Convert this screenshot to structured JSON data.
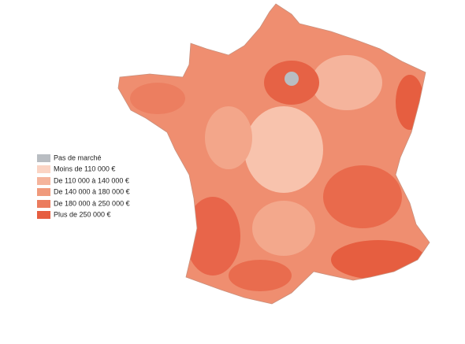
{
  "legend": {
    "items": [
      {
        "label": "Pas de marché",
        "color": "#b9bdc2"
      },
      {
        "label": "Moins de 110 000 €",
        "color": "#fbd4c4"
      },
      {
        "label": "De 110 000 à 140 000 €",
        "color": "#f5b49c"
      },
      {
        "label": "De 140 000 à 180 000 €",
        "color": "#f09a7c"
      },
      {
        "label": "De 180 000 à 250 000 €",
        "color": "#eb7c5e"
      },
      {
        "label": "Plus de 250 000 €",
        "color": "#e65e40"
      }
    ]
  }
}
